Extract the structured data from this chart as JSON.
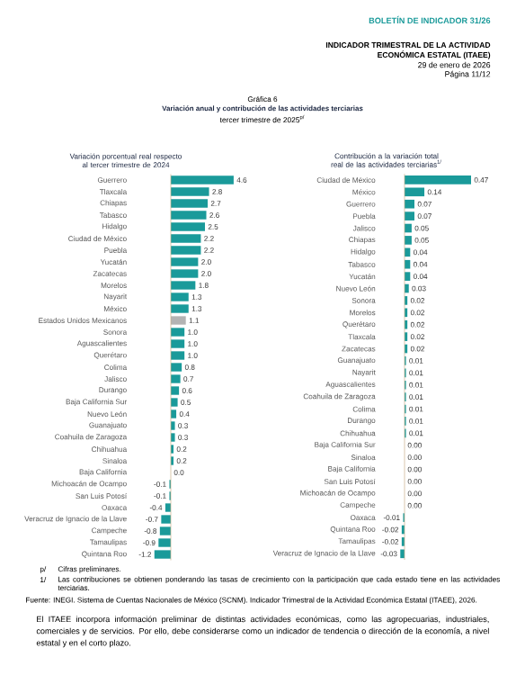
{
  "chart_data": [
    {
      "type": "other",
      "title": "Variación anual y contribución de las actividades terciarias",
      "subtitle": "tercer trimestre de 2025$^{p/}$",
      "annotations": [
        "BOLETÍN DE INDICADOR 31/26",
        "INDICADOR TRIMESTRAL DE LA ACTIVIDAD",
        "ECONÓMICA ESTATAL (ITAEE)",
        "29 de enero de 2026",
        "Página 11/12",
        "Gráfica 6",
        "p/",
        "Cifras preliminares.",
        "1/",
        "Las contribuciones se obtienen ponderando las tasas de crecimiento con la participación que cada estado tiene en las actividades terciarias.",
        "Fuente: INEGI. Sistema de Cuentas Nacionales de México (SCNM). Indicador Trimestral de la Actividad Económica Estatal (ITAEE), 2026.",
        "El ITAEE incorpora información preliminar de distintas actividades económicas, como las agropecuarias, industriales, comerciales y de servicios. Por ello, debe considerarse como un indicador de tendencia o dirección de la economía, a nivel estatal y en el corto plazo."
      ]
    },
    {
      "type": "bar",
      "orientation": "horizontal",
      "title": "Variación porcentual real respecto al tercer trimestre de 2024",
      "categories": [
        "Guerrero",
        "Tlaxcala",
        "Chiapas",
        "Tabasco",
        "Hidalgo",
        "Ciudad de México",
        "Puebla",
        "Yucatán",
        "Zacatecas",
        "Morelos",
        "Nayarit",
        "México",
        "Estados Unidos Mexicanos",
        "Sonora",
        "Aguascalientes",
        "Querétaro",
        "Colima",
        "Jalisco",
        "Durango",
        "Baja California Sur",
        "Nuevo León",
        "Guanajuato",
        "Coahuila de Zaragoza",
        "Chihuahua",
        "Sinaloa",
        "Baja California",
        "Michoacán de Ocampo",
        "San Luis Potosí",
        "Oaxaca",
        "Veracruz de Ignacio de la Llave",
        "Campeche",
        "Tamaulipas",
        "Quintana Roo"
      ],
      "values": [
        4.6,
        2.8,
        2.7,
        2.6,
        2.5,
        2.2,
        2.2,
        2.0,
        2.0,
        1.8,
        1.3,
        1.3,
        1.1,
        1.0,
        1.0,
        1.0,
        0.8,
        0.7,
        0.6,
        0.5,
        0.4,
        0.3,
        0.3,
        0.2,
        0.2,
        0.0,
        -0.1,
        -0.1,
        -0.4,
        -0.7,
        -0.8,
        -0.9,
        -1.2
      ],
      "value_labels": [
        "4.6",
        "2.8",
        "2.7",
        "2.6",
        "2.5",
        "2.2",
        "2.2",
        "2.0",
        "2.0",
        "1.8",
        "1.3",
        "1.3",
        "1.1",
        "1.0",
        "1.0",
        "1.0",
        "0.8",
        "0.7",
        "0.6",
        "0.5",
        "0.4",
        "0.3",
        "0.3",
        "0.2",
        "0.2",
        "0.0",
        "-0.1",
        "-0.1",
        "-0.4",
        "-0.7",
        "-0.8",
        "-0.9",
        "-1.2"
      ],
      "ref_lines": [
        {
          "axis": "x",
          "value": 0,
          "color": "#c8b08a"
        }
      ],
      "colors": [
        "#1a9a9a",
        "#1a9a9a",
        "#1a9a9a",
        "#1a9a9a",
        "#1a9a9a",
        "#1a9a9a",
        "#1a9a9a",
        "#1a9a9a",
        "#1a9a9a",
        "#1a9a9a",
        "#1a9a9a",
        "#1a9a9a",
        "#b3b3b3",
        "#1a9a9a",
        "#1a9a9a",
        "#1a9a9a",
        "#1a9a9a",
        "#1a9a9a",
        "#1a9a9a",
        "#1a9a9a",
        "#1a9a9a",
        "#1a9a9a",
        "#1a9a9a",
        "#1a9a9a",
        "#1a9a9a",
        "#1a9a9a",
        "#1a9a9a",
        "#1a9a9a",
        "#1a9a9a",
        "#1a9a9a",
        "#1a9a9a",
        "#1a9a9a",
        "#1a9a9a"
      ]
    },
    {
      "type": "bar",
      "orientation": "horizontal",
      "title": "Contribución a la variación total real de las actividades terciarias$^{1/}$",
      "categories": [
        "Ciudad de México",
        "México",
        "Guerrero",
        "Puebla",
        "Jalisco",
        "Chiapas",
        "Hidalgo",
        "Tabasco",
        "Yucatán",
        "Nuevo León",
        "Sonora",
        "Morelos",
        "Querétaro",
        "Tlaxcala",
        "Zacatecas",
        "Guanajuato",
        "Nayarit",
        "Aguascalientes",
        "Coahuila de Zaragoza",
        "Colima",
        "Durango",
        "Chihuahua",
        "Baja California Sur",
        "Sinaloa",
        "Baja California",
        "San Luis Potosí",
        "Michoacán de Ocampo",
        "Campeche",
        "Oaxaca",
        "Quintana Roo",
        "Tamaulipas",
        "Veracruz de Ignacio de la Llave"
      ],
      "values": [
        0.47,
        0.14,
        0.07,
        0.07,
        0.05,
        0.05,
        0.04,
        0.04,
        0.04,
        0.03,
        0.02,
        0.02,
        0.02,
        0.02,
        0.02,
        0.01,
        0.01,
        0.01,
        0.01,
        0.01,
        0.01,
        0.01,
        0.0,
        0.0,
        0.0,
        0.0,
        0.0,
        0.0,
        -0.01,
        -0.02,
        -0.02,
        -0.03
      ],
      "value_labels": [
        "0.47",
        "0.14",
        "0.07",
        "0.07",
        "0.05",
        "0.05",
        "0.04",
        "0.04",
        "0.04",
        "0.03",
        "0.02",
        "0.02",
        "0.02",
        "0.02",
        "0.02",
        "0.01",
        "0.01",
        "0.01",
        "0.01",
        "0.01",
        "0.01",
        "0.01",
        "0.00",
        "0.00",
        "0.00",
        "0.00",
        "0.00",
        "0.00",
        "-0.01",
        "-0.02",
        "-0.02",
        "-0.03"
      ],
      "ref_lines": [
        {
          "axis": "x",
          "value": 0,
          "color": "#c8b08a"
        }
      ],
      "color": "#1a9a9a"
    }
  ]
}
